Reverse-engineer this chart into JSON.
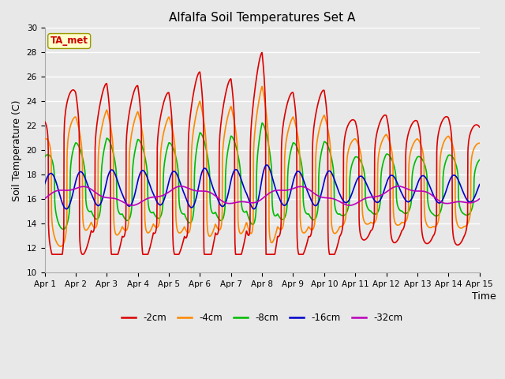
{
  "title": "Alfalfa Soil Temperatures Set A",
  "xlabel": "Time",
  "ylabel": "Soil Temperature (C)",
  "ylim": [
    10,
    30
  ],
  "xlim": [
    0,
    14
  ],
  "xtick_labels": [
    "Apr 1",
    "Apr 2",
    "Apr 3",
    "Apr 4",
    "Apr 5",
    "Apr 6",
    "Apr 7",
    "Apr 8",
    "Apr 9",
    "Apr 10",
    "Apr 11",
    "Apr 12",
    "Apr 13",
    "Apr 14",
    "Apr 15"
  ],
  "bg_color": "#e8e8e8",
  "grid_color": "#ffffff",
  "series_colors": {
    "-2cm": "#dd0000",
    "-4cm": "#ff8800",
    "-8cm": "#00bb00",
    "-16cm": "#0000cc",
    "-32cm": "#bb00bb"
  },
  "legend_label": "TA_met",
  "legend_box_facecolor": "#ffffcc",
  "legend_box_edgecolor": "#999900",
  "title_fontsize": 11,
  "axis_label_fontsize": 9,
  "tick_fontsize": 7.5,
  "legend_fontsize": 8.5
}
